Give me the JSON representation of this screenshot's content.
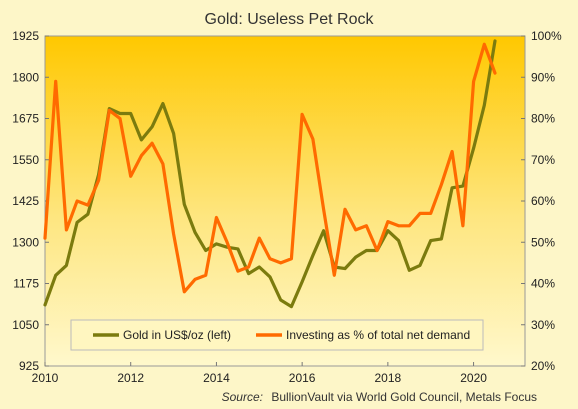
{
  "chart_data": {
    "type": "line",
    "title": "Gold: Useless Pet Rock",
    "source_label": "Source:",
    "source_text": "BullionVault via World Gold Council, Metals Focus",
    "legend_placement": "bottom-center",
    "x_ticks": [
      "2010",
      "2012",
      "2014",
      "2016",
      "2018",
      "2020"
    ],
    "xlim": [
      2010,
      2021.2
    ],
    "y_left": {
      "ticks": [
        "925",
        "1050",
        "1175",
        "1300",
        "1425",
        "1550",
        "1675",
        "1800",
        "1925"
      ],
      "ylim": [
        925,
        1925
      ]
    },
    "y_right": {
      "ticks": [
        "20%",
        "30%",
        "40%",
        "50%",
        "60%",
        "70%",
        "80%",
        "90%",
        "100%"
      ],
      "ylim": [
        20,
        100
      ]
    },
    "grid": false,
    "series": [
      {
        "name": "Gold in US$/oz (left)",
        "axis": "left",
        "color": "#7b7b0e",
        "points": [
          [
            2010.0,
            1110
          ],
          [
            2010.25,
            1200
          ],
          [
            2010.5,
            1230
          ],
          [
            2010.75,
            1360
          ],
          [
            2011.0,
            1385
          ],
          [
            2011.25,
            1505
          ],
          [
            2011.5,
            1705
          ],
          [
            2011.75,
            1690
          ],
          [
            2012.0,
            1690
          ],
          [
            2012.25,
            1610
          ],
          [
            2012.5,
            1650
          ],
          [
            2012.75,
            1720
          ],
          [
            2013.0,
            1630
          ],
          [
            2013.25,
            1415
          ],
          [
            2013.5,
            1330
          ],
          [
            2013.75,
            1275
          ],
          [
            2014.0,
            1295
          ],
          [
            2014.25,
            1285
          ],
          [
            2014.5,
            1280
          ],
          [
            2014.75,
            1205
          ],
          [
            2015.0,
            1225
          ],
          [
            2015.25,
            1195
          ],
          [
            2015.5,
            1125
          ],
          [
            2015.75,
            1105
          ],
          [
            2016.0,
            1180
          ],
          [
            2016.25,
            1260
          ],
          [
            2016.5,
            1335
          ],
          [
            2016.75,
            1225
          ],
          [
            2017.0,
            1220
          ],
          [
            2017.25,
            1255
          ],
          [
            2017.5,
            1275
          ],
          [
            2017.75,
            1275
          ],
          [
            2018.0,
            1335
          ],
          [
            2018.25,
            1305
          ],
          [
            2018.5,
            1215
          ],
          [
            2018.75,
            1230
          ],
          [
            2019.0,
            1305
          ],
          [
            2019.25,
            1310
          ],
          [
            2019.5,
            1465
          ],
          [
            2019.75,
            1470
          ],
          [
            2020.0,
            1585
          ],
          [
            2020.25,
            1715
          ],
          [
            2020.5,
            1910
          ]
        ]
      },
      {
        "name": "Investing as % of total net demand",
        "axis": "right",
        "color": "#ff6a00",
        "points": [
          [
            2010.0,
            51
          ],
          [
            2010.25,
            89
          ],
          [
            2010.5,
            53
          ],
          [
            2010.75,
            60
          ],
          [
            2011.0,
            59
          ],
          [
            2011.25,
            65
          ],
          [
            2011.5,
            82
          ],
          [
            2011.75,
            80
          ],
          [
            2012.0,
            66
          ],
          [
            2012.25,
            71
          ],
          [
            2012.5,
            74
          ],
          [
            2012.75,
            69
          ],
          [
            2013.0,
            52
          ],
          [
            2013.25,
            38
          ],
          [
            2013.5,
            41
          ],
          [
            2013.75,
            42
          ],
          [
            2014.0,
            56
          ],
          [
            2014.25,
            50
          ],
          [
            2014.5,
            43
          ],
          [
            2014.75,
            44
          ],
          [
            2015.0,
            51
          ],
          [
            2015.25,
            46
          ],
          [
            2015.5,
            45
          ],
          [
            2015.75,
            46
          ],
          [
            2016.0,
            81
          ],
          [
            2016.25,
            75
          ],
          [
            2016.5,
            58
          ],
          [
            2016.75,
            42
          ],
          [
            2017.0,
            58
          ],
          [
            2017.25,
            53
          ],
          [
            2017.5,
            54
          ],
          [
            2017.75,
            48
          ],
          [
            2018.0,
            55
          ],
          [
            2018.25,
            54
          ],
          [
            2018.5,
            54
          ],
          [
            2018.75,
            57
          ],
          [
            2019.0,
            57
          ],
          [
            2019.25,
            64
          ],
          [
            2019.5,
            72
          ],
          [
            2019.75,
            54
          ],
          [
            2020.0,
            89
          ],
          [
            2020.25,
            98
          ],
          [
            2020.5,
            91
          ]
        ]
      }
    ]
  }
}
